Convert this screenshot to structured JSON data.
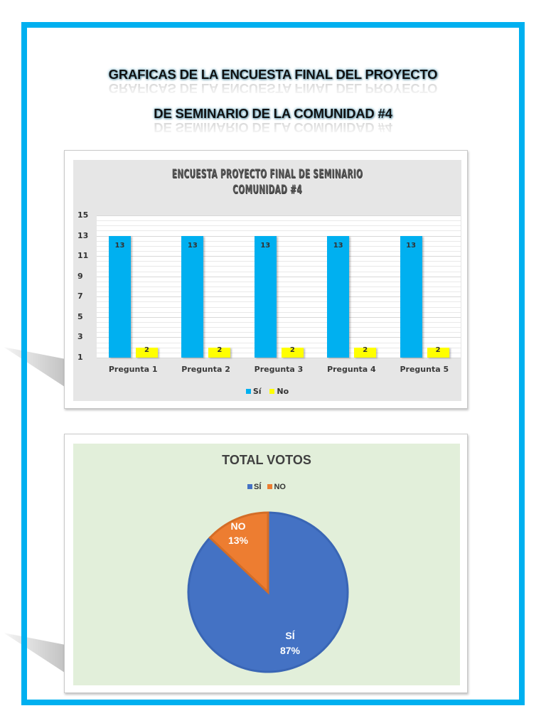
{
  "document": {
    "title_line_1": "GRAFICAS DE LA ENCUESTA FINAL DEL PROYECTO",
    "title_line_2": "DE SEMINARIO DE LA COMUNIDAD #4",
    "frame_color": "#00B0F0"
  },
  "bar_chart": {
    "title_line_1": "ENCUESTA PROYECTO FINAL DE SEMINARIO",
    "title_line_2": "COMUNIDAD #4",
    "y_ticks": [
      "15",
      "13",
      "11",
      "9",
      "7",
      "5",
      "3",
      "1"
    ],
    "categories": [
      "Pregunta 1",
      "Pregunta 2",
      "Pregunta 3",
      "Pregunta 4",
      "Pregunta 5"
    ],
    "legend": [
      {
        "label": "Sí",
        "color": "#00B0F0"
      },
      {
        "label": "No",
        "color": "#FFFF00"
      }
    ],
    "labels_si": [
      "13",
      "13",
      "13",
      "13",
      "13"
    ],
    "labels_no": [
      "2",
      "2",
      "2",
      "2",
      "2"
    ]
  },
  "pie_chart": {
    "title": "TOTAL VOTOS",
    "legend": [
      {
        "label": "SÍ",
        "color": "#4472C4"
      },
      {
        "label": "NO",
        "color": "#ED7D31"
      }
    ],
    "slices": [
      {
        "name": "SÍ",
        "label": "SÍ",
        "pct_label": "87%"
      },
      {
        "name": "NO",
        "label": "NO",
        "pct_label": "13%"
      }
    ]
  },
  "chart_data": [
    {
      "type": "bar",
      "title": "ENCUESTA PROYECTO FINAL DE SEMINARIO COMUNIDAD #4",
      "categories": [
        "Pregunta 1",
        "Pregunta 2",
        "Pregunta 3",
        "Pregunta 4",
        "Pregunta 5"
      ],
      "series": [
        {
          "name": "Sí",
          "values": [
            13,
            13,
            13,
            13,
            13
          ],
          "color": "#00B0F0"
        },
        {
          "name": "No",
          "values": [
            2,
            2,
            2,
            2,
            2
          ],
          "color": "#FFFF00"
        }
      ],
      "xlabel": "",
      "ylabel": "",
      "ylim": [
        1,
        15
      ],
      "yticks": [
        1,
        3,
        5,
        7,
        9,
        11,
        13,
        15
      ],
      "grid": true,
      "legend_position": "bottom",
      "data_labels": true
    },
    {
      "type": "pie",
      "title": "TOTAL VOTOS",
      "categories": [
        "SÍ",
        "NO"
      ],
      "values": [
        87,
        13
      ],
      "value_labels": [
        "87%",
        "13%"
      ],
      "colors": [
        "#4472C4",
        "#ED7D31"
      ],
      "legend_position": "top"
    }
  ]
}
